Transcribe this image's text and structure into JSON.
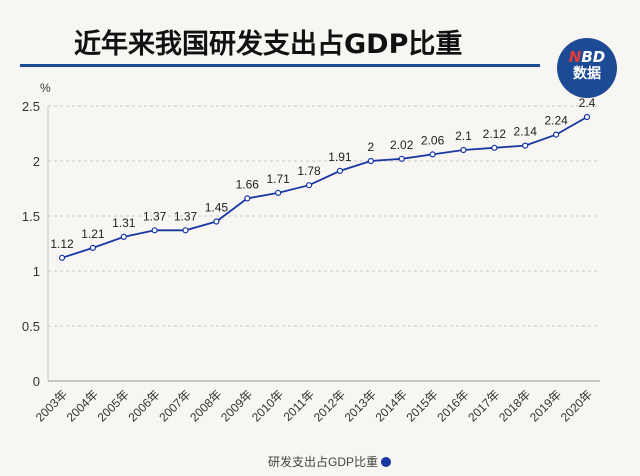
{
  "title": "近年来我国研发支出占GDP比重",
  "logo": {
    "line1_accent": "N",
    "line1_rest": "BD",
    "line2": "数据"
  },
  "chart_data": {
    "type": "line",
    "title": "近年来我国研发支出占GDP比重",
    "ylabel": "%",
    "xlabel": "",
    "categories": [
      "2003年",
      "2004年",
      "2005年",
      "2006年",
      "2007年",
      "2008年",
      "2009年",
      "2010年",
      "2011年",
      "2012年",
      "2013年",
      "2014年",
      "2015年",
      "2016年",
      "2017年",
      "2018年",
      "2019年",
      "2020年"
    ],
    "series": [
      {
        "name": "研发支出占GDP比重",
        "values": [
          1.12,
          1.21,
          1.31,
          1.37,
          1.37,
          1.45,
          1.66,
          1.71,
          1.78,
          1.91,
          2,
          2.02,
          2.06,
          2.1,
          2.12,
          2.14,
          2.24,
          2.4
        ],
        "color": "#1737a3"
      }
    ],
    "ylim": [
      0,
      2.5
    ],
    "yticks": [
      "0",
      "0.5",
      "1",
      "1.5",
      "2",
      "2.5"
    ],
    "grid": true,
    "legend": "bottom"
  }
}
